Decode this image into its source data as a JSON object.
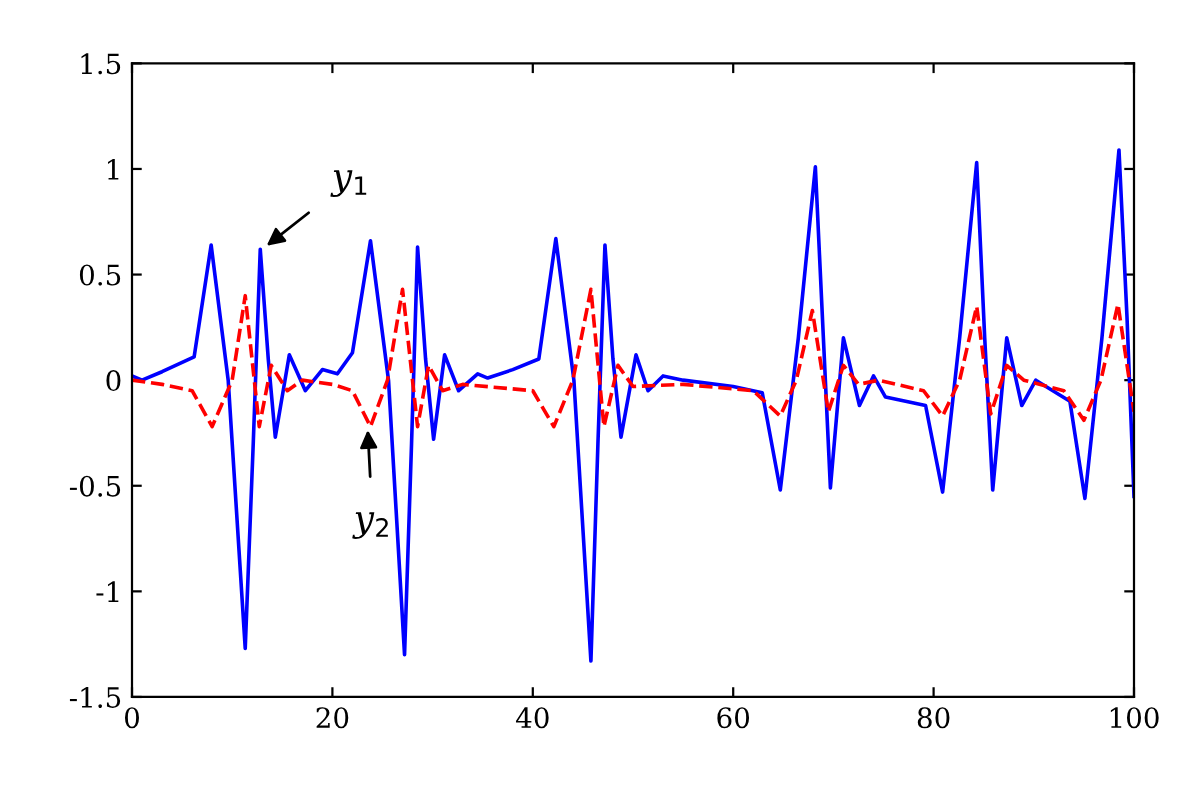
{
  "chart_data": {
    "type": "line",
    "xlim": [
      0,
      100
    ],
    "ylim": [
      -1.5,
      1.5
    ],
    "xticks": [
      0,
      20,
      40,
      60,
      80,
      100
    ],
    "yticks": [
      -1.5,
      -1,
      -0.5,
      0,
      0.5,
      1,
      1.5
    ],
    "grid": false,
    "legend": false,
    "marker": "none",
    "series": [
      {
        "color": "#0000ff",
        "line_style": "solid",
        "x": [
          0,
          1,
          3,
          6.2,
          7.9,
          9.6,
          11.3,
          12.1,
          12.8,
          13.6,
          14.3,
          15.7,
          17.3,
          19,
          20.5,
          22,
          23.8,
          25.6,
          27.2,
          27.9,
          28.5,
          29.3,
          30.1,
          31.2,
          32.6,
          34.5,
          35.5,
          38,
          40.6,
          42.3,
          44.1,
          45.8,
          46.5,
          47.2,
          48,
          48.8,
          50.3,
          51.5,
          53,
          55,
          60,
          62.9,
          64.7,
          66.5,
          68.2,
          69,
          69.7,
          71,
          72.6,
          74,
          75.2,
          79.2,
          80.9,
          82.6,
          84.3,
          85.1,
          85.9,
          87.3,
          88.8,
          90.2,
          93.6,
          95.1,
          96.8,
          98.5,
          99.3,
          100
        ],
        "values": [
          0.02,
          0.0,
          0.04,
          0.11,
          0.64,
          0.0,
          -1.27,
          -0.3,
          0.62,
          0.1,
          -0.27,
          0.12,
          -0.05,
          0.05,
          0.03,
          0.13,
          0.66,
          0.0,
          -1.3,
          -0.3,
          0.63,
          0.1,
          -0.28,
          0.12,
          -0.05,
          0.03,
          0.01,
          0.05,
          0.1,
          0.67,
          0.0,
          -1.33,
          -0.3,
          0.64,
          0.1,
          -0.27,
          0.12,
          -0.05,
          0.02,
          0.0,
          -0.03,
          -0.06,
          -0.52,
          0.2,
          1.01,
          0.2,
          -0.51,
          0.2,
          -0.12,
          0.02,
          -0.08,
          -0.12,
          -0.53,
          0.2,
          1.03,
          0.2,
          -0.52,
          0.2,
          -0.12,
          0.0,
          -0.1,
          -0.56,
          0.2,
          1.09,
          0.3,
          -0.55
        ]
      },
      {
        "color": "#ff0000",
        "line_style": "dashed",
        "x": [
          0,
          3,
          6,
          8,
          10,
          11.3,
          12.7,
          13.9,
          15.5,
          17,
          20,
          22,
          23.8,
          25.5,
          27,
          28.5,
          29.6,
          31,
          33,
          40,
          42.1,
          44,
          45.8,
          47.1,
          48.5,
          50,
          55,
          62,
          64.7,
          66.3,
          67.9,
          69.5,
          71,
          72.5,
          74.5,
          79,
          80.9,
          82.6,
          84.3,
          85.7,
          87.3,
          89,
          93,
          95,
          96.7,
          98.4,
          100
        ],
        "values": [
          0.0,
          -0.02,
          -0.05,
          -0.22,
          0.0,
          0.4,
          -0.22,
          0.07,
          -0.05,
          0.0,
          -0.02,
          -0.05,
          -0.22,
          0.0,
          0.43,
          -0.22,
          0.07,
          -0.05,
          -0.02,
          -0.05,
          -0.22,
          0.0,
          0.43,
          -0.22,
          0.07,
          -0.03,
          -0.02,
          -0.05,
          -0.17,
          0.0,
          0.33,
          -0.15,
          0.07,
          -0.02,
          0.0,
          -0.05,
          -0.17,
          0.0,
          0.35,
          -0.16,
          0.07,
          0.0,
          -0.05,
          -0.19,
          0.0,
          0.36,
          -0.15
        ]
      }
    ],
    "annotations": [
      {
        "text": "y$_{1}$",
        "x": 13,
        "y": 0.62
      },
      {
        "text": "y$_{2}$",
        "x": 23.5,
        "y": -0.21
      }
    ]
  }
}
